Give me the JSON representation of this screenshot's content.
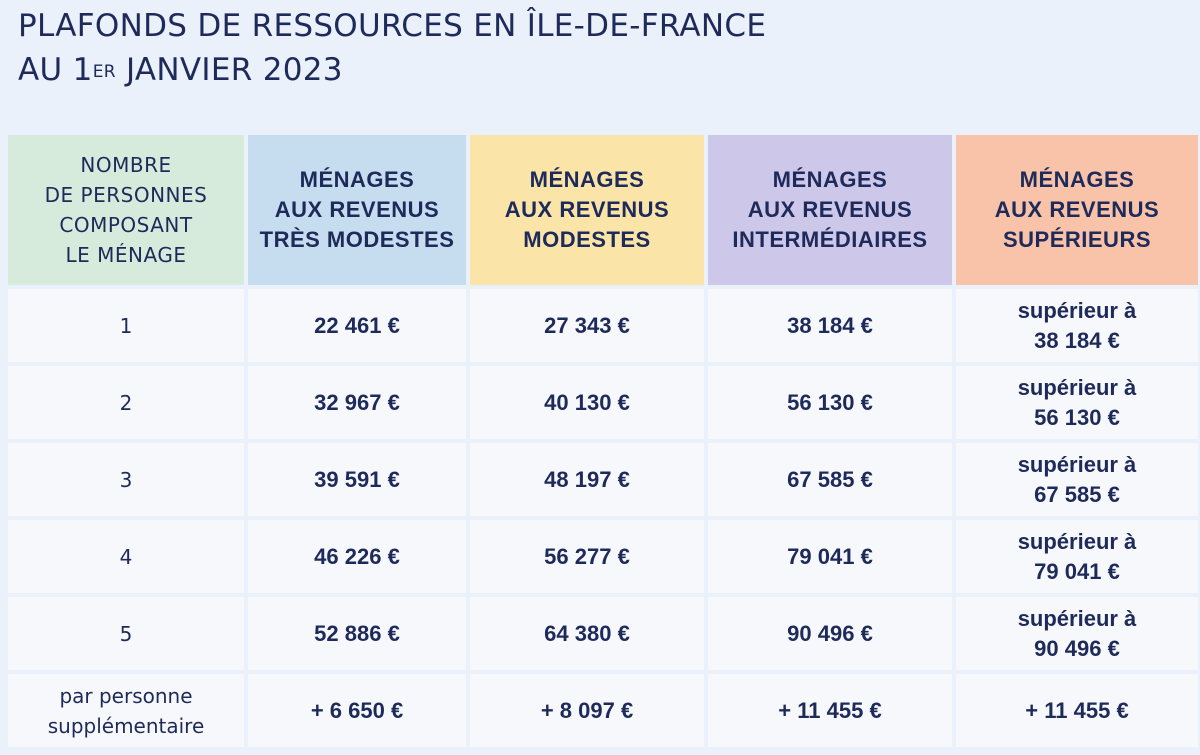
{
  "title": {
    "line1": "PLAFONDS DE RESSOURCES EN ÎLE-DE-FRANCE",
    "line2_prefix": "AU 1",
    "line2_sup": "ER",
    "line2_suffix": " JANVIER 2023"
  },
  "headers": [
    [
      "NOMBRE",
      "DE PERSONNES",
      "COMPOSANT",
      "LE MÉNAGE"
    ],
    [
      "MÉNAGES",
      "AUX REVENUS",
      "TRÈS MODESTES"
    ],
    [
      "MÉNAGES",
      "AUX REVENUS",
      "MODESTES"
    ],
    [
      "MÉNAGES",
      "AUX REVENUS",
      "INTERMÉDIAIRES"
    ],
    [
      "MÉNAGES",
      "AUX REVENUS",
      "SUPÉRIEURS"
    ]
  ],
  "superior_prefix": "supérieur à",
  "rows": [
    {
      "persons": [
        "1"
      ],
      "tres_modestes": "22 461 €",
      "modestes": "27 343 €",
      "intermediaires": "38 184 €",
      "superieurs": "38 184 €"
    },
    {
      "persons": [
        "2"
      ],
      "tres_modestes": "32 967 €",
      "modestes": "40 130 €",
      "intermediaires": "56 130 €",
      "superieurs": "56 130 €"
    },
    {
      "persons": [
        "3"
      ],
      "tres_modestes": "39 591 €",
      "modestes": "48 197 €",
      "intermediaires": "67 585 €",
      "superieurs": "67 585 €"
    },
    {
      "persons": [
        "4"
      ],
      "tres_modestes": "46 226 €",
      "modestes": "56 277 €",
      "intermediaires": "79 041 €",
      "superieurs": "79 041 €"
    },
    {
      "persons": [
        "5"
      ],
      "tres_modestes": "52 886 €",
      "modestes": "64 380 €",
      "intermediaires": "90 496 €",
      "superieurs": "90 496 €"
    }
  ],
  "extra_row": {
    "persons": [
      "par personne",
      "supplémentaire"
    ],
    "tres_modestes": "+ 6 650 €",
    "modestes": "+ 8 097 €",
    "intermediaires": "+ 11 455 €",
    "superieurs": "+ 11 455 €"
  },
  "colors": {
    "header_persons": "#d7ebdc",
    "header_tres_modestes": "#c6ddf0",
    "header_modestes": "#fae4a7",
    "header_intermediaires": "#cdc8ea",
    "header_superieurs": "#f8c3a9",
    "text": "#1e2a5a",
    "background": "#eaf1fa"
  }
}
